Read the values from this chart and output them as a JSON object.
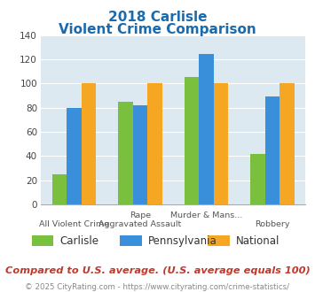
{
  "title_line1": "2018 Carlisle",
  "title_line2": "Violent Crime Comparison",
  "cat_labels_top": [
    "",
    "Rape",
    "Murder & Mans...",
    ""
  ],
  "cat_labels_bot": [
    "All Violent Crime",
    "Aggravated Assault",
    "",
    "Robbery"
  ],
  "series": {
    "Carlisle": [
      25,
      85,
      105,
      42
    ],
    "Pennsylvania": [
      80,
      82,
      124,
      89
    ],
    "National": [
      100,
      100,
      100,
      100
    ]
  },
  "colors": {
    "Carlisle": "#7bbf3e",
    "Pennsylvania": "#3a8fdb",
    "National": "#f5a623"
  },
  "ylim": [
    0,
    140
  ],
  "yticks": [
    0,
    20,
    40,
    60,
    80,
    100,
    120,
    140
  ],
  "plot_bg": "#dce9f0",
  "title_color": "#1a6aad",
  "footer_text": "Compared to U.S. average. (U.S. average equals 100)",
  "copyright_text": "© 2025 CityRating.com - https://www.cityrating.com/crime-statistics/",
  "footer_color": "#c0392b",
  "copyright_color": "#888888"
}
